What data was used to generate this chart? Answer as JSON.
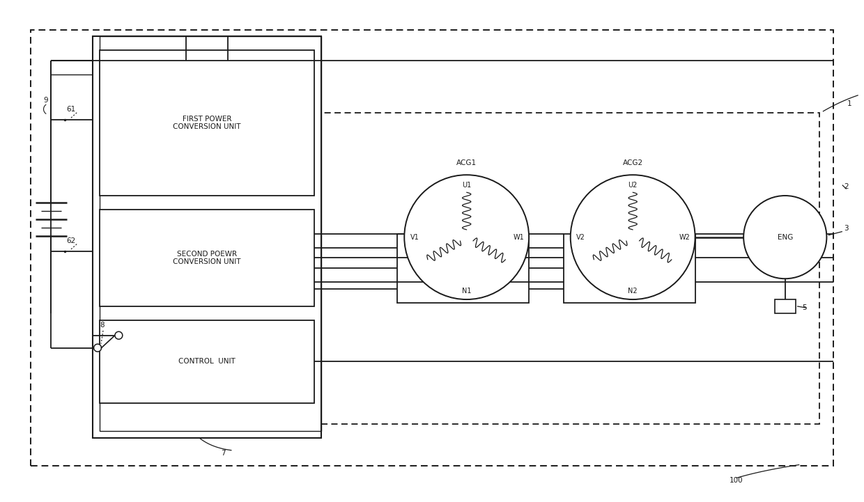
{
  "bg_color": "#ffffff",
  "line_color": "#1a1a1a",
  "fig_width": 12.4,
  "fig_height": 7.21,
  "labels": {
    "acg1": "ACG1",
    "acg2": "ACG2",
    "eng": "ENG",
    "first_power": "FIRST POWER\nCONVERSION UNIT",
    "second_power": "SECOND POEWR\nCONVERSION UNIT",
    "control": "CONTROL  UNIT",
    "n1": "N1",
    "n2": "N2",
    "u1": "U1",
    "u2": "U2",
    "v1": "V1",
    "v2": "V2",
    "w1": "W1",
    "w2": "W2",
    "ref_1": "1",
    "ref_2": "2",
    "ref_3": "3",
    "ref_5": "5",
    "ref_7": "7",
    "ref_8": "8",
    "ref_9": "9",
    "ref_61": "61",
    "ref_62": "62",
    "ref_100": "100"
  }
}
